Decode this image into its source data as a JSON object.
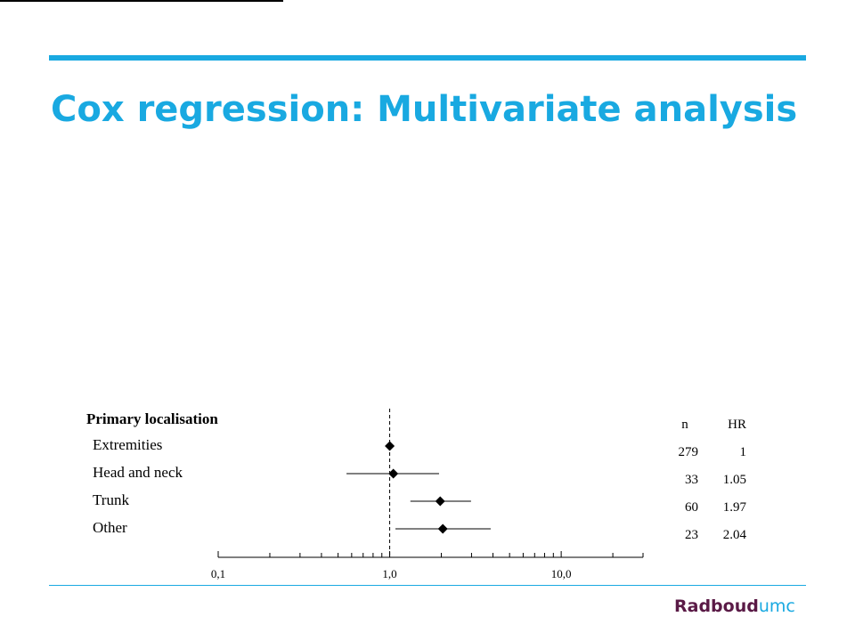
{
  "slide": {
    "title": "Cox regression: Multivariate analysis",
    "accent_color": "#19a9e1",
    "logo": {
      "part1": "Radboud",
      "part2": "umc",
      "color1": "#5a1a46",
      "color2": "#19a9e1"
    }
  },
  "chart_data": {
    "type": "forest",
    "group_label": "Primary localisation",
    "categories": [
      "Extremities",
      "Head and neck",
      "Trunk",
      "Other"
    ],
    "hr": [
      1.0,
      1.05,
      1.97,
      2.04
    ],
    "ci_low": [
      1.0,
      0.56,
      1.32,
      1.08
    ],
    "ci_high": [
      1.0,
      1.94,
      2.98,
      3.88
    ],
    "columns": {
      "n_header": "n",
      "hr_header": "HR",
      "n": [
        "279",
        "33",
        "60",
        "23"
      ],
      "hr_text": [
        "1",
        "1.05",
        "1.97",
        "2.04"
      ]
    },
    "x_scale": "log",
    "xlim": [
      0.1,
      30
    ],
    "x_ticks": [
      0.1,
      1.0,
      10.0
    ],
    "x_tick_labels": [
      "0,1",
      "1,0",
      "10,0"
    ],
    "reference_line": 1.0
  }
}
